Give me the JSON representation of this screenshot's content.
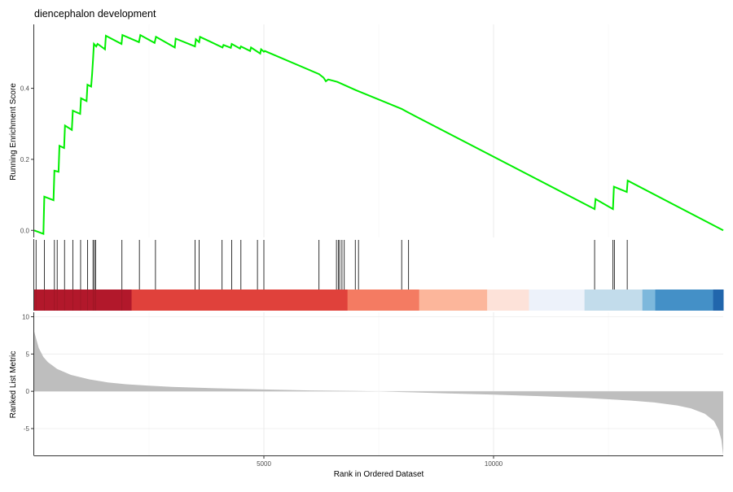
{
  "chart_data": {
    "type": "line",
    "title": "diencephalon development",
    "xlabel": "Rank in Ordered Dataset",
    "x_ticks": [
      5000,
      10000
    ],
    "xlim": [
      0,
      15000
    ],
    "grid": true,
    "legend": "none",
    "colors": {
      "es_line": "#00ee00",
      "hit_tick": "#000000",
      "metric_fill": "#bebebe",
      "gridline": "#ebebeb",
      "axis": "#333333"
    },
    "panels": {
      "running_score": {
        "ylabel": "Running Enrichment Score",
        "y_ticks": [
          0.0,
          0.2,
          0.4
        ],
        "ylim": [
          -0.02,
          0.58
        ],
        "series": [
          {
            "x": [
              0,
              200,
              220,
              420,
              440,
              530,
              550,
              650,
              670,
              820,
              840,
              1000,
              1020,
              1140,
              1160,
              1240,
              1260,
              1280,
              1300,
              1350,
              1380,
              1540,
              1560,
              1900,
              1920,
              2280,
              2310,
              2620,
              2650,
              3060,
              3080,
              3500,
              3520,
              3590,
              3610,
              4100,
              4120,
              4280,
              4300,
              4480,
              4500,
              4700,
              4720,
              4920,
              4940,
              5000,
              5020,
              6200,
              6300,
              6350,
              6400,
              6600,
              7000,
              8000,
              8100,
              8200,
              12200,
              12220,
              12600,
              12620,
              12900,
              12920,
              15000
            ],
            "y": [
              0.0,
              -0.01,
              0.095,
              0.085,
              0.168,
              0.165,
              0.238,
              0.232,
              0.295,
              0.283,
              0.337,
              0.328,
              0.372,
              0.364,
              0.41,
              0.405,
              0.44,
              0.48,
              0.525,
              0.518,
              0.525,
              0.51,
              0.548,
              0.525,
              0.55,
              0.53,
              0.55,
              0.528,
              0.545,
              0.515,
              0.54,
              0.518,
              0.538,
              0.53,
              0.545,
              0.515,
              0.522,
              0.514,
              0.525,
              0.512,
              0.518,
              0.505,
              0.515,
              0.498,
              0.51,
              0.503,
              0.505,
              0.44,
              0.43,
              0.42,
              0.425,
              0.418,
              0.395,
              0.342,
              0.335,
              0.328,
              0.06,
              0.088,
              0.06,
              0.123,
              0.108,
              0.14,
              0.0
            ]
          }
        ]
      },
      "hits": {
        "positions": [
          40,
          220,
          440,
          500,
          660,
          840,
          1010,
          1160,
          1280,
          1310,
          1340,
          1910,
          2290,
          2640,
          3500,
          3590,
          4090,
          4300,
          4500,
          4860,
          5000,
          6200,
          6580,
          6620,
          6650,
          6700,
          6750,
          6990,
          7060,
          8000,
          8150,
          12200,
          12600,
          12630,
          12910
        ]
      },
      "color_bar": {
        "segments": [
          {
            "from": 0,
            "to": 2120,
            "color": "#b2182b"
          },
          {
            "from": 2120,
            "to": 6820,
            "color": "#e0413b"
          },
          {
            "from": 6820,
            "to": 8380,
            "color": "#f47b62"
          },
          {
            "from": 8380,
            "to": 9860,
            "color": "#fcb69b"
          },
          {
            "from": 9860,
            "to": 10770,
            "color": "#fde2d9"
          },
          {
            "from": 10770,
            "to": 11980,
            "color": "#edf2fa"
          },
          {
            "from": 11980,
            "to": 13240,
            "color": "#c2dceb"
          },
          {
            "from": 13240,
            "to": 13520,
            "color": "#7db8dc"
          },
          {
            "from": 13520,
            "to": 14780,
            "color": "#4490c7"
          },
          {
            "from": 14780,
            "to": 15000,
            "color": "#2166ac"
          }
        ]
      },
      "ranked_metric": {
        "ylabel": "Ranked List Metric",
        "y_ticks": [
          10,
          5,
          0,
          -5
        ],
        "ylim": [
          -8.6,
          10.6
        ],
        "x": [
          0,
          100,
          200,
          300,
          500,
          800,
          1200,
          1600,
          2000,
          2500,
          3000,
          4000,
          5000,
          6000,
          7000,
          7500,
          8000,
          9000,
          10000,
          11000,
          12000,
          13000,
          13500,
          14000,
          14300,
          14600,
          14800,
          14900,
          14960,
          15000
        ],
        "y": [
          8.0,
          5.8,
          4.6,
          3.9,
          3.0,
          2.2,
          1.6,
          1.2,
          0.95,
          0.75,
          0.6,
          0.4,
          0.25,
          0.12,
          0.05,
          0.0,
          -0.1,
          -0.28,
          -0.45,
          -0.65,
          -0.9,
          -1.25,
          -1.5,
          -1.9,
          -2.3,
          -3.0,
          -4.0,
          -5.2,
          -6.5,
          -8.6
        ]
      }
    }
  }
}
